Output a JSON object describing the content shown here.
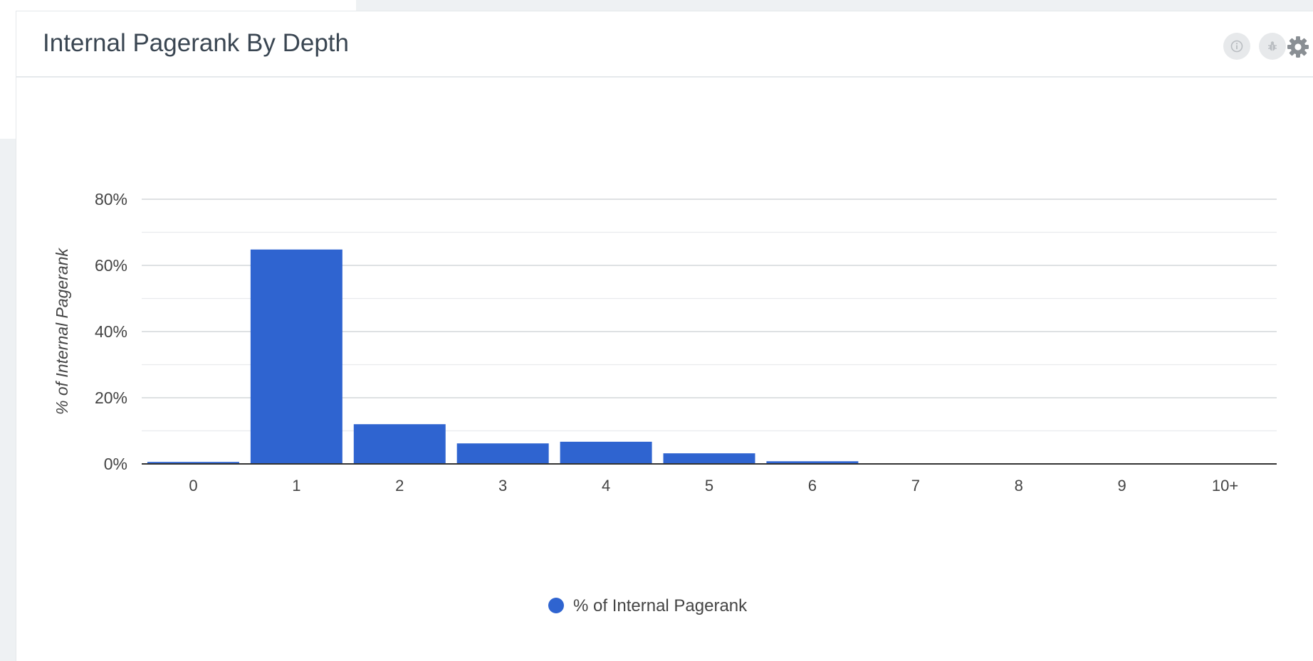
{
  "widget": {
    "title": "Internal Pagerank By Depth",
    "icons": [
      "info-icon",
      "bug-icon",
      "gear-icon"
    ]
  },
  "colors": {
    "bar": "#2f64d0",
    "grid": "#d9dcdf",
    "axis": "#333333",
    "text": "#444444"
  },
  "chart_data": {
    "type": "bar",
    "title": "",
    "xlabel": "",
    "ylabel": "% of Internal Pagerank",
    "categories": [
      "0",
      "1",
      "2",
      "3",
      "4",
      "5",
      "6",
      "7",
      "8",
      "9",
      "10+"
    ],
    "series": [
      {
        "name": "% of Internal Pagerank",
        "values": [
          0.6,
          64.8,
          12.0,
          6.2,
          6.7,
          3.2,
          0.8,
          0.1,
          0.05,
          0.02,
          0.01
        ]
      }
    ],
    "ylim": [
      0,
      80
    ],
    "yticks": [
      0,
      20,
      40,
      60,
      80
    ],
    "ytick_labels": [
      "0%",
      "20%",
      "40%",
      "60%",
      "80%"
    ],
    "grid": true,
    "legend": "bottom-center"
  }
}
